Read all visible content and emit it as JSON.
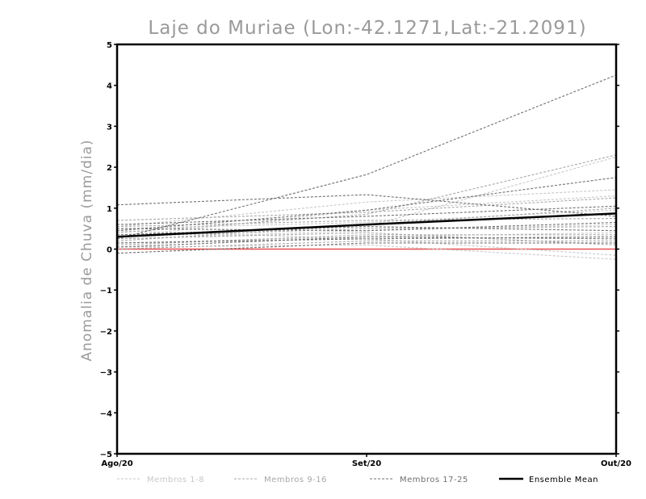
{
  "chart_data": {
    "type": "line",
    "title": "Laje do Muriae (Lon:-42.1271,Lat:-21.2091)",
    "ylabel": "Anomalia de Chuva (mm/dia)",
    "xlabel": "",
    "categories": [
      "Ago/20",
      "Set/20",
      "Out/20"
    ],
    "ylim": [
      -5,
      5
    ],
    "yticks": [
      -5,
      -4,
      -3,
      -2,
      -1,
      0,
      1,
      2,
      3,
      4,
      5
    ],
    "zero_line_color": "#e85050",
    "groups": [
      {
        "name": "Membros 1-8",
        "color": "#c8c8c8",
        "series": [
          [
            0.35,
            0.55,
            2.25
          ],
          [
            0.55,
            1.15,
            1.45
          ],
          [
            0.3,
            0.95,
            1.3
          ],
          [
            0.5,
            0.65,
            0.95
          ],
          [
            0.25,
            0.45,
            0.6
          ],
          [
            0.15,
            0.3,
            0.4
          ],
          [
            0.05,
            0.1,
            -0.25
          ],
          [
            0.45,
            0.25,
            -0.15
          ]
        ]
      },
      {
        "name": "Membros 9-16",
        "color": "#a8a8a8",
        "series": [
          [
            0.4,
            0.85,
            2.3
          ],
          [
            0.7,
            0.9,
            1.25
          ],
          [
            0.2,
            0.6,
            1.0
          ],
          [
            0.55,
            0.7,
            0.75
          ],
          [
            0.3,
            0.5,
            0.55
          ],
          [
            0.1,
            0.35,
            0.35
          ],
          [
            0.0,
            0.2,
            0.2
          ],
          [
            0.25,
            0.4,
            0.1
          ]
        ]
      },
      {
        "name": "Membros 17-25",
        "color": "#707070",
        "series": [
          [
            0.25,
            1.82,
            4.25
          ],
          [
            1.08,
            1.33,
            0.8
          ],
          [
            0.45,
            0.95,
            1.75
          ],
          [
            0.6,
            0.8,
            1.05
          ],
          [
            0.35,
            0.55,
            0.45
          ],
          [
            0.15,
            0.25,
            0.3
          ],
          [
            -0.1,
            0.15,
            0.15
          ],
          [
            0.05,
            0.3,
            0.25
          ],
          [
            0.5,
            0.45,
            0.65
          ]
        ]
      }
    ],
    "ensemble_mean": {
      "name": "Ensemble Mean",
      "color": "#000000",
      "values": [
        0.3,
        0.6,
        0.87
      ]
    }
  }
}
